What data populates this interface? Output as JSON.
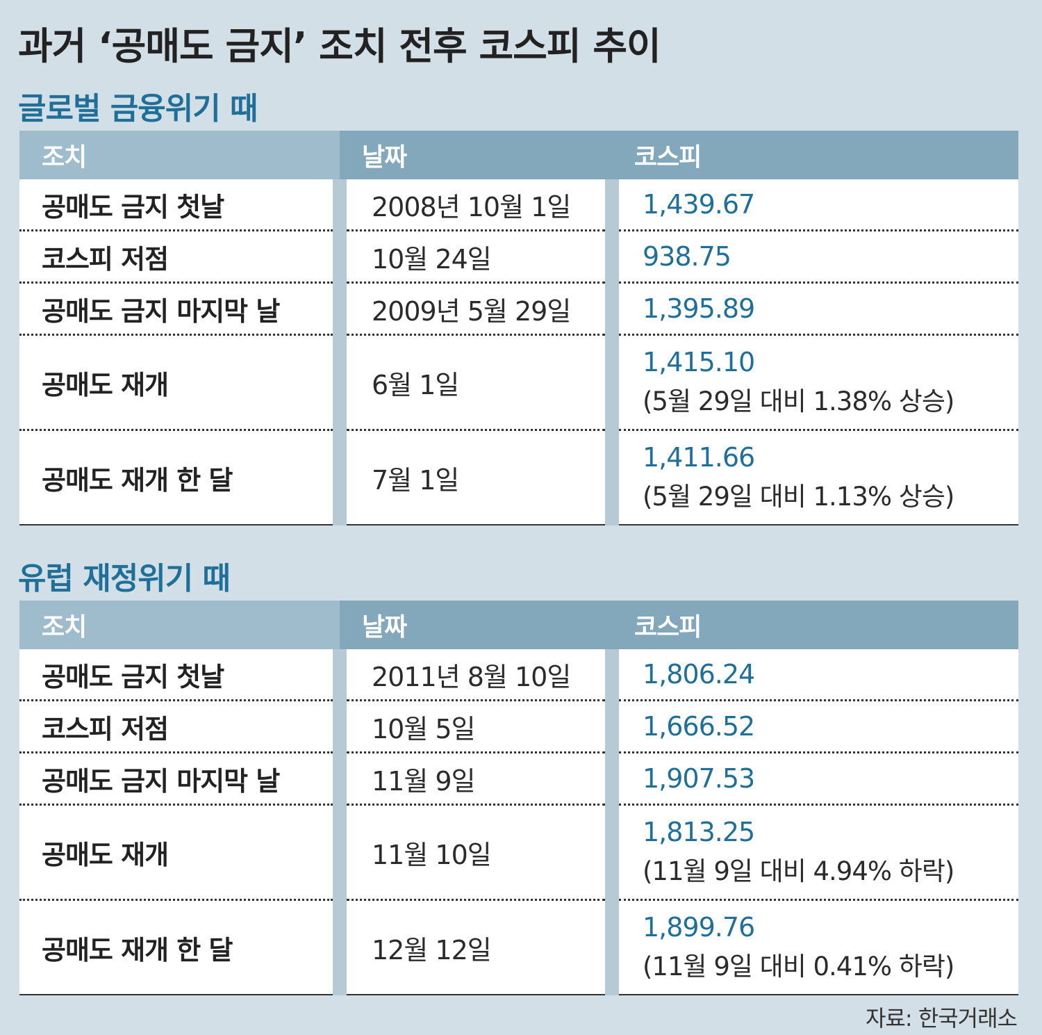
{
  "title": "과거 ‘공매도 금지’ 조치 전후 코스피 추이",
  "headers": {
    "action": "조치",
    "date": "날짜",
    "kospi": "코스피"
  },
  "sections": [
    {
      "title": "글로벌 금융위기 때",
      "rows": [
        {
          "action": "공매도 금지 첫날",
          "date": "2008년 10월 1일",
          "kospi": "1,439.67",
          "note": ""
        },
        {
          "action": "코스피 저점",
          "date": "10월 24일",
          "kospi": "938.75",
          "note": ""
        },
        {
          "action": "공매도 금지 마지막 날",
          "date": "2009년 5월 29일",
          "kospi": "1,395.89",
          "note": ""
        },
        {
          "action": "공매도 재개",
          "date": "6월 1일",
          "kospi": "1,415.10",
          "note": "(5월 29일 대비 1.38% 상승)"
        },
        {
          "action": "공매도 재개 한 달",
          "date": "7월 1일",
          "kospi": "1,411.66",
          "note": "(5월 29일 대비 1.13% 상승)"
        }
      ]
    },
    {
      "title": "유럽 재정위기 때",
      "rows": [
        {
          "action": "공매도 금지 첫날",
          "date": "2011년 8월 10일",
          "kospi": "1,806.24",
          "note": ""
        },
        {
          "action": "코스피 저점",
          "date": "10월 5일",
          "kospi": "1,666.52",
          "note": ""
        },
        {
          "action": "공매도 금지 마지막 날",
          "date": "11월 9일",
          "kospi": "1,907.53",
          "note": ""
        },
        {
          "action": "공매도 재개",
          "date": "11월 10일",
          "kospi": "1,813.25",
          "note": "(11월 9일 대비 4.94% 하락)"
        },
        {
          "action": "공매도 재개 한 달",
          "date": "12월 12일",
          "kospi": "1,899.76",
          "note": "(11월 9일 대비 0.41% 하락)"
        }
      ]
    }
  ],
  "source": "자료: 한국거래소",
  "colors": {
    "background": "#d3dfe6",
    "accent": "#1f6f98",
    "header_dark": "#84a8bb",
    "header_light": "#9fbccd"
  }
}
